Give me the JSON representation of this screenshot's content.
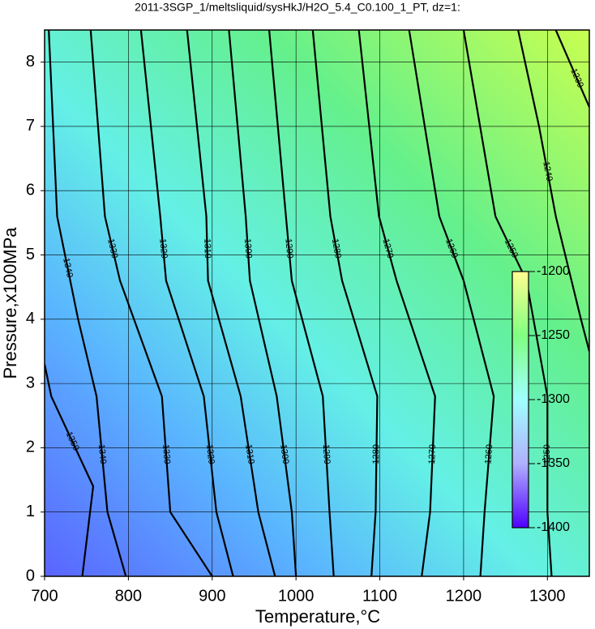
{
  "chart_data": {
    "type": "contour",
    "title": "2011-3SGP_1/meltsliquid/sysHkJ/H2O_5.4_C0.100_1_PT, dz=1:",
    "xlabel": "Temperature,°C",
    "ylabel": "Pressure,x100MPa",
    "xlim": [
      700,
      1350
    ],
    "ylim": [
      0,
      8.5
    ],
    "xticks": [
      700,
      800,
      900,
      1000,
      1100,
      1200,
      1300
    ],
    "yticks": [
      0,
      1,
      2,
      3,
      4,
      5,
      6,
      7,
      8
    ],
    "grid": true,
    "contours": [
      {
        "level": 1350,
        "x": [
          745,
          758,
          708,
          700
        ],
        "y": [
          0,
          1.4,
          2.8,
          3.3
        ]
      },
      {
        "level": 1340,
        "x": [
          797,
          775,
          762,
          740,
          715,
          705
        ],
        "y": [
          0,
          1,
          2.8,
          4,
          5.6,
          8.5
        ]
      },
      {
        "level": 1330,
        "x": [
          900,
          850,
          840,
          790,
          772,
          755
        ],
        "y": [
          0,
          1,
          2.8,
          4.6,
          5.6,
          8.5
        ]
      },
      {
        "level": 1320,
        "x": [
          925,
          905,
          890,
          845,
          838,
          815
        ],
        "y": [
          0,
          1,
          2.8,
          4.6,
          5.6,
          8.5
        ]
      },
      {
        "level": 1310,
        "x": [
          975,
          955,
          934,
          895,
          893,
          870
        ],
        "y": [
          0,
          1,
          2.8,
          4.6,
          5.6,
          8.5
        ]
      },
      {
        "level": 1300,
        "x": [
          1000,
          995,
          977,
          945,
          940,
          920
        ],
        "y": [
          0,
          1,
          2.8,
          4.6,
          5.6,
          8.5
        ]
      },
      {
        "level": 1290,
        "x": [
          1045,
          1040,
          1032,
          995,
          988,
          968
        ],
        "y": [
          0,
          1,
          2.8,
          4.6,
          5.6,
          8.5
        ]
      },
      {
        "level": 1280,
        "x": [
          1090,
          1095,
          1097,
          1055,
          1041,
          1020
        ],
        "y": [
          0,
          1,
          2.8,
          4.6,
          5.6,
          8.5
        ]
      },
      {
        "level": 1270,
        "x": [
          1150,
          1160,
          1166,
          1120,
          1099,
          1075
        ],
        "y": [
          0,
          1,
          2.8,
          4.6,
          5.6,
          8.5
        ]
      },
      {
        "level": 1260,
        "x": [
          1220,
          1225,
          1236,
          1200,
          1171,
          1135
        ],
        "y": [
          0,
          1,
          2.8,
          4.6,
          5.6,
          8.5
        ]
      },
      {
        "level": 1250,
        "x": [
          1305,
          1300,
          1300,
          1275,
          1238,
          1200
        ],
        "y": [
          0,
          1,
          2.8,
          4.6,
          5.6,
          8.5
        ]
      },
      {
        "level": 1240,
        "x": [
          1350,
          1340,
          1310,
          1290,
          1265
        ],
        "y": [
          3.5,
          4,
          5.6,
          7,
          8.5
        ]
      },
      {
        "level": 1230,
        "x": [
          1350,
          1320,
          1310
        ],
        "y": [
          7.3,
          8.2,
          8.5
        ]
      }
    ],
    "colorbar": {
      "lim": [
        -1400,
        -1200
      ],
      "ticks": [
        -1200,
        -1250,
        -1300,
        -1350,
        -1400
      ]
    }
  }
}
